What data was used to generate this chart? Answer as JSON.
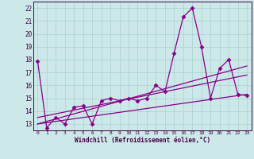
{
  "xlabel": "Windchill (Refroidissement éolien,°C)",
  "background_color": "#cce8e8",
  "line_color": "#880088",
  "grid_color": "#aad0d0",
  "xlim": [
    -0.5,
    23.5
  ],
  "ylim": [
    12.5,
    22.5
  ],
  "yticks": [
    13,
    14,
    15,
    16,
    17,
    18,
    19,
    20,
    21,
    22
  ],
  "xticks": [
    0,
    1,
    2,
    3,
    4,
    5,
    6,
    7,
    8,
    9,
    10,
    11,
    12,
    13,
    14,
    15,
    16,
    17,
    18,
    19,
    20,
    21,
    22,
    23
  ],
  "series": [
    {
      "x": [
        0,
        1,
        2,
        3,
        4,
        5,
        6,
        7,
        8,
        9,
        10,
        11,
        12,
        13,
        14,
        15,
        16,
        17,
        18,
        19,
        20,
        21,
        22,
        23
      ],
      "y": [
        17.9,
        12.7,
        13.5,
        13.0,
        14.3,
        14.4,
        13.0,
        14.8,
        15.0,
        14.8,
        15.0,
        14.8,
        15.0,
        16.0,
        15.5,
        18.5,
        21.3,
        22.0,
        19.0,
        15.0,
        17.3,
        18.0,
        15.3,
        15.2
      ],
      "marker": "D",
      "markersize": 2.5,
      "linewidth": 0.9
    },
    {
      "x": [
        0,
        23
      ],
      "y": [
        13.0,
        15.3
      ],
      "marker": null,
      "linewidth": 0.9
    },
    {
      "x": [
        0,
        23
      ],
      "y": [
        13.0,
        17.5
      ],
      "marker": null,
      "linewidth": 0.9
    },
    {
      "x": [
        0,
        23
      ],
      "y": [
        13.5,
        16.8
      ],
      "marker": null,
      "linewidth": 0.9
    }
  ]
}
